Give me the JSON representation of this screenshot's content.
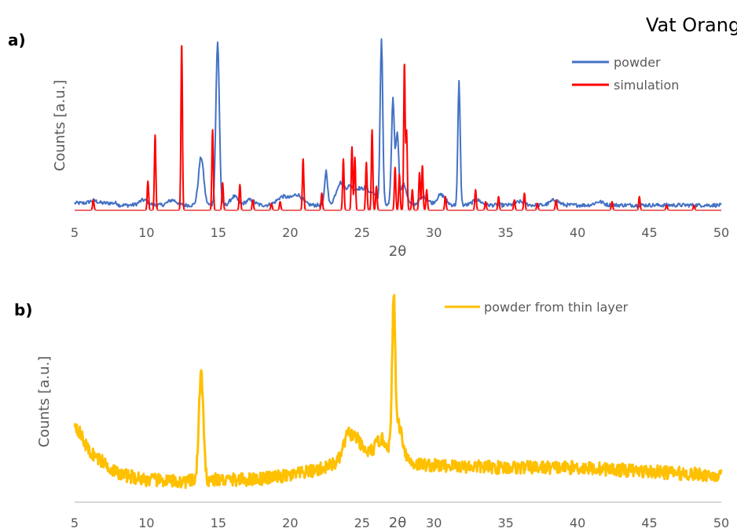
{
  "figure": {
    "title": "Vat Orange",
    "colors": {
      "powder": "#4472C4",
      "simulation": "#FF0000",
      "thin_layer": "#FFC000",
      "axis": "#D9D9D9"
    }
  },
  "chart_data": [
    {
      "type": "line",
      "panel_label": "a)",
      "title": "Vat Orange",
      "xlabel": "2θ",
      "ylabel": "Counts [a.u.]",
      "xlim": [
        5,
        50
      ],
      "ylim": [
        0,
        100
      ],
      "x_ticks": [
        5,
        10,
        15,
        20,
        25,
        30,
        35,
        40,
        45,
        50
      ],
      "legend_position": "top-right",
      "series": [
        {
          "name": "powder",
          "kind": "measured",
          "color": "#4472C4",
          "baseline": 3,
          "peaks": [
            [
              6.3,
              1.5,
              0.25
            ],
            [
              9.8,
              3,
              0.3
            ],
            [
              11.8,
              3,
              0.3
            ],
            [
              13.8,
              28,
              0.18
            ],
            [
              14.95,
              95,
              0.12
            ],
            [
              16.1,
              5,
              0.25
            ],
            [
              17.2,
              3,
              0.3
            ],
            [
              19.5,
              5,
              0.4
            ],
            [
              20.5,
              6,
              0.35
            ],
            [
              22.5,
              20,
              0.1
            ],
            [
              23.5,
              13,
              0.3
            ],
            [
              24.2,
              10,
              0.25
            ],
            [
              24.8,
              9,
              0.25
            ],
            [
              25.3,
              9,
              0.2
            ],
            [
              25.8,
              7,
              0.2
            ],
            [
              26.35,
              97,
              0.09
            ],
            [
              27.15,
              62,
              0.1
            ],
            [
              27.45,
              42,
              0.1
            ],
            [
              27.9,
              12,
              0.2
            ],
            [
              29.3,
              5,
              0.3
            ],
            [
              30.5,
              6,
              0.3
            ],
            [
              31.75,
              72,
              0.08
            ],
            [
              33.0,
              3,
              0.3
            ],
            [
              36.0,
              2,
              0.3
            ],
            [
              38.4,
              3,
              0.3
            ],
            [
              41.5,
              2,
              0.3
            ]
          ]
        },
        {
          "name": "simulation",
          "kind": "simulated",
          "color": "#FF0000",
          "baseline": 0,
          "peaks": [
            [
              6.3,
              6,
              0.05
            ],
            [
              10.1,
              17,
              0.05
            ],
            [
              10.6,
              44,
              0.05
            ],
            [
              12.45,
              98,
              0.05
            ],
            [
              14.6,
              47,
              0.05
            ],
            [
              15.3,
              16,
              0.05
            ],
            [
              16.5,
              15,
              0.05
            ],
            [
              17.4,
              6,
              0.05
            ],
            [
              18.7,
              4,
              0.05
            ],
            [
              19.3,
              5,
              0.05
            ],
            [
              20.9,
              30,
              0.05
            ],
            [
              22.2,
              10,
              0.05
            ],
            [
              23.7,
              30,
              0.05
            ],
            [
              24.3,
              37,
              0.05
            ],
            [
              24.5,
              31,
              0.05
            ],
            [
              25.3,
              28,
              0.05
            ],
            [
              25.7,
              47,
              0.05
            ],
            [
              26.0,
              14,
              0.05
            ],
            [
              27.3,
              25,
              0.05
            ],
            [
              27.6,
              21,
              0.05
            ],
            [
              27.95,
              86,
              0.05
            ],
            [
              28.1,
              46,
              0.05
            ],
            [
              28.5,
              12,
              0.05
            ],
            [
              29.0,
              22,
              0.05
            ],
            [
              29.2,
              26,
              0.05
            ],
            [
              29.5,
              12,
              0.05
            ],
            [
              30.8,
              8,
              0.05
            ],
            [
              32.9,
              12,
              0.05
            ],
            [
              33.6,
              5,
              0.05
            ],
            [
              34.5,
              8,
              0.05
            ],
            [
              35.6,
              6,
              0.05
            ],
            [
              36.3,
              10,
              0.05
            ],
            [
              37.2,
              4,
              0.05
            ],
            [
              38.5,
              6,
              0.05
            ],
            [
              42.4,
              5,
              0.05
            ],
            [
              44.3,
              8,
              0.05
            ],
            [
              46.2,
              3,
              0.05
            ],
            [
              48.1,
              3,
              0.05
            ]
          ]
        }
      ]
    },
    {
      "type": "line",
      "panel_label": "b)",
      "xlabel": "2θ",
      "ylabel": "Counts [a.u.]",
      "xlim": [
        5,
        50
      ],
      "ylim": [
        0,
        100
      ],
      "x_ticks": [
        5,
        10,
        15,
        20,
        25,
        30,
        35,
        40,
        45,
        50
      ],
      "legend_position": "top-right",
      "series": [
        {
          "name": "powder from thin layer",
          "kind": "measured-broad",
          "color": "#FFC000",
          "background": [
            [
              5,
              39
            ],
            [
              6,
              25
            ],
            [
              8,
              14
            ],
            [
              10,
              11
            ],
            [
              12.5,
              10
            ],
            [
              14.5,
              11
            ],
            [
              17,
              11
            ],
            [
              20,
              13
            ],
            [
              22,
              16
            ],
            [
              23.5,
              20
            ],
            [
              25,
              24
            ],
            [
              26.5,
              26
            ],
            [
              27.5,
              24
            ],
            [
              28.5,
              19
            ],
            [
              30,
              18
            ],
            [
              35,
              17
            ],
            [
              40,
              17
            ],
            [
              45,
              15
            ],
            [
              50,
              13
            ]
          ],
          "peaks": [
            [
              13.8,
              53,
              0.15
            ],
            [
              24.0,
              11,
              0.3
            ],
            [
              24.6,
              7,
              0.3
            ],
            [
              26.3,
              5,
              0.3
            ],
            [
              27.2,
              69,
              0.1
            ],
            [
              27.5,
              15,
              0.3
            ]
          ]
        }
      ]
    }
  ]
}
